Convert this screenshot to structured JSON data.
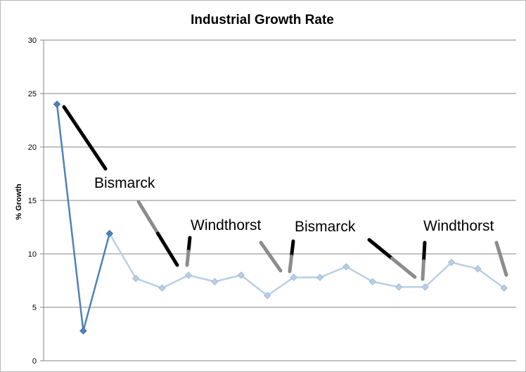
{
  "chart_data": {
    "type": "line",
    "title": "Industrial Growth Rate",
    "xlabel": "",
    "ylabel": "% Growth",
    "ylim": [
      0,
      30
    ],
    "yticks": [
      0,
      5,
      10,
      15,
      20,
      25,
      30
    ],
    "grid": true,
    "legend": "none",
    "series": [
      {
        "values": [
          24,
          2.8,
          11.9,
          7.7,
          6.8,
          8.0,
          7.4,
          8.0,
          6.1,
          7.8,
          7.8,
          8.8,
          7.4,
          6.9,
          6.9,
          9.2,
          8.6,
          6.8
        ],
        "color_dark": "#4f81bd",
        "color_light": "#b9cfe6"
      }
    ],
    "annotations": [
      {
        "text": "Bismarck",
        "color": "#000000"
      },
      {
        "text": "Windthorst",
        "color": "#000000"
      },
      {
        "text": "Bismarck",
        "color": "#000000"
      },
      {
        "text": "Windthorst",
        "color": "#000000"
      }
    ],
    "colors": {
      "gridline": "#868686",
      "axis": "#868686",
      "marker_stroke": "#000000",
      "marker_gray": "#8c8c8c"
    }
  }
}
